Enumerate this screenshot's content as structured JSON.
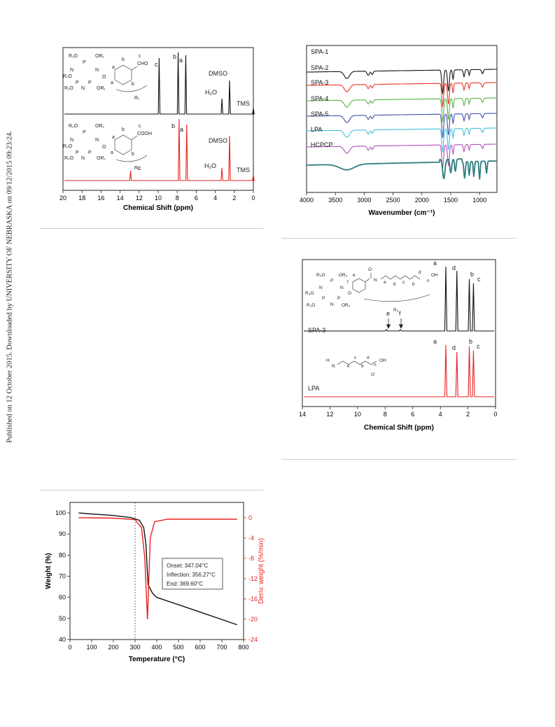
{
  "side_note": "Published on 12 October 2015. Downloaded by UNIVERSITY OF NEBRASKA on 09/12/2015 09:23:24.",
  "figures": {
    "nmr1": {
      "xlabel": "Chemical Shift (ppm)",
      "ticks": [
        "20",
        "18",
        "16",
        "14",
        "12",
        "10",
        "8",
        "6",
        "4",
        "2",
        "0"
      ],
      "top": {
        "peak_c": "c",
        "peak_b": "b",
        "peak_a": "a",
        "h2o": "H₂O",
        "dmso": "DMSO",
        "tms": "TMS",
        "cho": "CHO",
        "r1": "R₁"
      },
      "bottom": {
        "peak_c": "c",
        "peak_b": "b",
        "peak_a": "a",
        "h2o": "H₂O",
        "dmso": "DMSO",
        "tms": "TMS",
        "cooh": "COOH",
        "r2": "R₂"
      },
      "colors": {
        "top": "#111111",
        "bottom": "#e8231f"
      }
    },
    "ir": {
      "xlabel": "Wavenumber (cm⁻¹)",
      "ticks": [
        "4000",
        "3500",
        "3000",
        "2500",
        "2000",
        "1500",
        "1000"
      ],
      "labels": [
        "SPA-1",
        "SPA-2",
        "SPA-3",
        "SPA-4",
        "SPA-5",
        "LPA",
        "HCPCP"
      ],
      "colors": [
        "#111111",
        "#e8342a",
        "#52b43f",
        "#3f4fa8",
        "#3fc0d8",
        "#b24fb8",
        "#2e7d7d"
      ]
    },
    "nmr2": {
      "xlabel": "Chemical Shift (ppm)",
      "ticks": [
        "14",
        "12",
        "10",
        "8",
        "6",
        "4",
        "2",
        "0"
      ],
      "spa3": {
        "name": "SPA-3",
        "a": "a",
        "d": "d",
        "b": "b",
        "c": "c",
        "e": "e",
        "f": "f",
        "r3": "R₃",
        "oh": "OH"
      },
      "lpa": {
        "name": "LPA",
        "a": "a",
        "d": "d",
        "b": "b",
        "c": "c",
        "oh": "OH",
        "h": "H"
      },
      "colors": {
        "spa3": "#111111",
        "lpa": "#e8231f"
      }
    },
    "tga": {
      "xlabel": "Temperature (°C)",
      "ylabel": "Weight (%)",
      "y2label": "Deriv. weight (%/min)",
      "xticks": [
        "0",
        "100",
        "200",
        "300",
        "400",
        "500",
        "600",
        "700",
        "800"
      ],
      "yticks": [
        "40",
        "50",
        "60",
        "70",
        "80",
        "90",
        "100"
      ],
      "y2ticks": [
        "0",
        "-4",
        "-8",
        "-12",
        "-16",
        "-20",
        "-24"
      ],
      "annotation": [
        "Onset: 347.04°C",
        "Inflection: 356.27°C",
        "End: 369.60°C"
      ],
      "colors": {
        "weight": "#111111",
        "deriv": "#e8231f"
      }
    }
  },
  "chart_data": [
    {
      "type": "line",
      "xlabel": "Chemical Shift (ppm)",
      "ylabel": "",
      "xlim": [
        20,
        0
      ],
      "series": [
        {
          "name": "",
          "peaks_ppm": [
            9.9,
            7.9,
            7.1,
            3.3,
            2.5,
            0.0
          ]
        },
        {
          "name": "",
          "peaks_ppm": [
            12.9,
            7.8,
            7.0,
            3.3,
            2.5,
            0.0
          ]
        }
      ]
    },
    {
      "type": "line",
      "xlabel": "Wavenumber (cm⁻¹)",
      "ylabel": "",
      "xlim": [
        4000,
        700
      ],
      "series": [
        {
          "name": "SPA-1"
        },
        {
          "name": "SPA-2"
        },
        {
          "name": "SPA-3"
        },
        {
          "name": "SPA-4"
        },
        {
          "name": "SPA-5"
        },
        {
          "name": "LPA"
        },
        {
          "name": "HCPCP"
        }
      ]
    },
    {
      "type": "line",
      "xlabel": "Chemical Shift (ppm)",
      "ylabel": "",
      "xlim": [
        14,
        0
      ],
      "series": [
        {
          "name": "SPA-3",
          "peaks_ppm": [
            7.9,
            6.9,
            3.6,
            2.8,
            1.9,
            1.6
          ]
        },
        {
          "name": "LPA",
          "peaks_ppm": [
            3.6,
            2.8,
            1.9,
            1.6
          ]
        }
      ]
    },
    {
      "type": "line",
      "xlabel": "Temperature (°C)",
      "ylabel": "Weight (%)",
      "xlim": [
        0,
        800
      ],
      "ylim": [
        40,
        105
      ],
      "y2lim": [
        -24,
        3
      ],
      "series": [
        {
          "name": "",
          "x": [
            40,
            100,
            200,
            280,
            320,
            340,
            350,
            355,
            360,
            380,
            400,
            500,
            600,
            700,
            770
          ],
          "y": [
            100,
            99.5,
            98.8,
            97.8,
            96.5,
            93,
            85,
            75,
            66,
            62,
            60,
            56.5,
            53,
            49.5,
            47
          ]
        },
        {
          "name": "",
          "axis": "right",
          "x": [
            40,
            200,
            300,
            330,
            345,
            352,
            357,
            362,
            370,
            390,
            450,
            600,
            770
          ],
          "y": [
            0,
            -0.1,
            -0.4,
            -2,
            -8,
            -15,
            -20,
            -14,
            -4,
            -0.8,
            -0.3,
            -0.3,
            -0.3
          ]
        }
      ],
      "vline_x": 300
    }
  ]
}
